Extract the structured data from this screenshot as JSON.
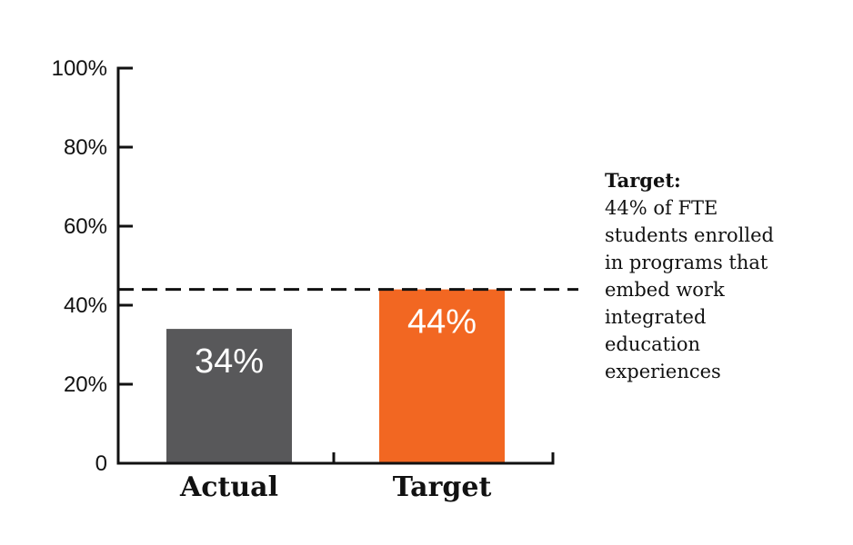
{
  "chart_data": {
    "type": "bar",
    "categories": [
      "Actual",
      "Target"
    ],
    "values": [
      34,
      44
    ],
    "value_labels": [
      "34%",
      "44%"
    ],
    "ylim": [
      0,
      100
    ],
    "yticks": [
      0,
      20,
      40,
      60,
      80,
      100
    ],
    "ytick_labels": [
      "0",
      "20%",
      "40%",
      "60%",
      "80%",
      "100%"
    ],
    "bar_colors": [
      "#58585a",
      "#f26722"
    ],
    "target_line": 44,
    "grid": false,
    "annotation": {
      "title": "Target:",
      "lines": [
        "44% of FTE",
        "students enrolled",
        "in programs that",
        "embed work",
        "integrated",
        "education",
        "experiences"
      ]
    }
  }
}
